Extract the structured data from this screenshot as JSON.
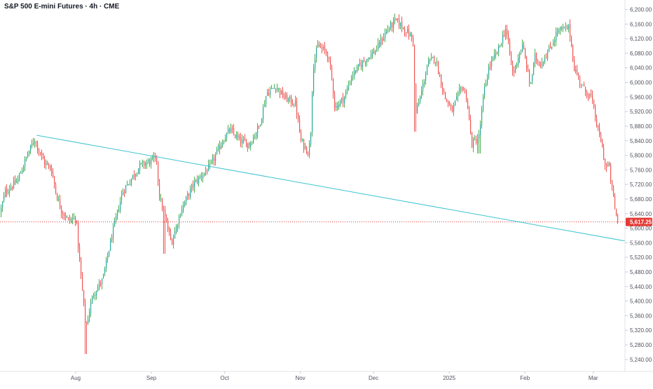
{
  "chart_title": "S&P 500 E-mini Futures · 4h · CME",
  "colors": {
    "up": "#26a69a",
    "up_wick": "#4caf50",
    "down": "#ef5350",
    "trendline": "#3fc4d1",
    "last_price_bg": "#e53935",
    "grid": "#f0f3fa",
    "axis_text": "#50535e"
  },
  "chart_data": {
    "type": "candlestick",
    "grid": false,
    "y_axis": {
      "position": "right",
      "ylim": [
        5207,
        6226
      ],
      "ticks": [
        6200,
        6160,
        6120,
        6080,
        6040,
        6000,
        5960,
        5920,
        5880,
        5840,
        5800,
        5760,
        5720,
        5680,
        5640,
        5600,
        5560,
        5520,
        5480,
        5440,
        5400,
        5360,
        5320,
        5280,
        5240
      ],
      "tick_labels": [
        "6,200.00",
        "6,160.00",
        "6,120.00",
        "6,080.00",
        "6,040.00",
        "6,000.00",
        "5,960.00",
        "5,920.00",
        "5,880.00",
        "5,840.00",
        "5,800.00",
        "5,760.00",
        "5,720.00",
        "5,680.00",
        "5,640.00",
        "5,600.00",
        "5,560.00",
        "5,520.00",
        "5,480.00",
        "5,440.00",
        "5,400.00",
        "5,360.00",
        "5,320.00",
        "5,280.00",
        "5,240.00"
      ]
    },
    "x_axis": {
      "start": "2024-07-01",
      "end": "2025-03-14",
      "ticks": [
        {
          "date": "2024-08-01",
          "label": "Aug"
        },
        {
          "date": "2024-09-01",
          "label": "Sep"
        },
        {
          "date": "2024-10-01",
          "label": "Oct"
        },
        {
          "date": "2024-11-01",
          "label": "Nov"
        },
        {
          "date": "2024-12-01",
          "label": "Dec"
        },
        {
          "date": "2025-01-01",
          "label": "2025"
        },
        {
          "date": "2025-02-01",
          "label": "Feb"
        },
        {
          "date": "2025-03-01",
          "label": "Mar"
        }
      ]
    },
    "price_path": [
      [
        "2024-07-01",
        5645
      ],
      [
        "2024-07-03",
        5700
      ],
      [
        "2024-07-08",
        5730
      ],
      [
        "2024-07-12",
        5800
      ],
      [
        "2024-07-15",
        5845
      ],
      [
        "2024-07-17",
        5810
      ],
      [
        "2024-07-19",
        5780
      ],
      [
        "2024-07-22",
        5760
      ],
      [
        "2024-07-24",
        5690
      ],
      [
        "2024-07-26",
        5650
      ],
      [
        "2024-07-29",
        5620
      ],
      [
        "2024-08-01",
        5630
      ],
      [
        "2024-08-02",
        5540
      ],
      [
        "2024-08-05",
        5325
      ],
      [
        "2024-08-06",
        5360
      ],
      [
        "2024-08-08",
        5420
      ],
      [
        "2024-08-12",
        5460
      ],
      [
        "2024-08-15",
        5560
      ],
      [
        "2024-08-20",
        5700
      ],
      [
        "2024-08-22",
        5720
      ],
      [
        "2024-08-27",
        5770
      ],
      [
        "2024-08-30",
        5780
      ],
      [
        "2024-09-03",
        5790
      ],
      [
        "2024-09-04",
        5690
      ],
      [
        "2024-09-06",
        5640
      ],
      [
        "2024-09-09",
        5560
      ],
      [
        "2024-09-10",
        5580
      ],
      [
        "2024-09-13",
        5650
      ],
      [
        "2024-09-18",
        5720
      ],
      [
        "2024-09-25",
        5770
      ],
      [
        "2024-09-30",
        5840
      ],
      [
        "2024-10-03",
        5870
      ],
      [
        "2024-10-07",
        5840
      ],
      [
        "2024-10-11",
        5830
      ],
      [
        "2024-10-15",
        5880
      ],
      [
        "2024-10-18",
        5970
      ],
      [
        "2024-10-22",
        5990
      ],
      [
        "2024-10-25",
        5960
      ],
      [
        "2024-10-30",
        5940
      ],
      [
        "2024-11-01",
        5840
      ],
      [
        "2024-11-04",
        5810
      ],
      [
        "2024-11-05",
        5840
      ],
      [
        "2024-11-06",
        6040
      ],
      [
        "2024-11-08",
        6100
      ],
      [
        "2024-11-12",
        6080
      ],
      [
        "2024-11-14",
        6000
      ],
      [
        "2024-11-15",
        5930
      ],
      [
        "2024-11-19",
        5960
      ],
      [
        "2024-11-22",
        6020
      ],
      [
        "2024-11-27",
        6060
      ],
      [
        "2024-12-02",
        6090
      ],
      [
        "2024-12-06",
        6140
      ],
      [
        "2024-12-10",
        6170
      ],
      [
        "2024-12-13",
        6150
      ],
      [
        "2024-12-17",
        6120
      ],
      [
        "2024-12-18",
        5910
      ],
      [
        "2024-12-20",
        5960
      ],
      [
        "2024-12-23",
        6050
      ],
      [
        "2024-12-26",
        6070
      ],
      [
        "2024-12-30",
        5960
      ],
      [
        "2025-01-02",
        5920
      ],
      [
        "2025-01-06",
        5990
      ],
      [
        "2025-01-08",
        5960
      ],
      [
        "2025-01-10",
        5830
      ],
      [
        "2025-01-13",
        5850
      ],
      [
        "2025-01-15",
        5970
      ],
      [
        "2025-01-17",
        6040
      ],
      [
        "2025-01-21",
        6090
      ],
      [
        "2025-01-24",
        6150
      ],
      [
        "2025-01-27",
        6020
      ],
      [
        "2025-01-29",
        6070
      ],
      [
        "2025-01-31",
        6100
      ],
      [
        "2025-02-03",
        5990
      ],
      [
        "2025-02-05",
        6070
      ],
      [
        "2025-02-07",
        6050
      ],
      [
        "2025-02-11",
        6090
      ],
      [
        "2025-02-14",
        6140
      ],
      [
        "2025-02-19",
        6150
      ],
      [
        "2025-02-21",
        6040
      ],
      [
        "2025-02-25",
        5980
      ],
      [
        "2025-02-28",
        5960
      ],
      [
        "2025-03-03",
        5860
      ],
      [
        "2025-03-04",
        5840
      ],
      [
        "2025-03-06",
        5760
      ],
      [
        "2025-03-07",
        5780
      ],
      [
        "2025-03-10",
        5640
      ],
      [
        "2025-03-11",
        5617.25
      ]
    ],
    "lows": [
      {
        "date": "2024-08-05",
        "low": 5255
      },
      {
        "date": "2024-09-06",
        "low": 5530
      },
      {
        "date": "2024-12-18",
        "low": 5865
      },
      {
        "date": "2025-01-13",
        "low": 5805
      }
    ],
    "trendline": {
      "from": [
        "2024-07-16",
        5855
      ],
      "to": [
        "2025-03-14",
        5565
      ]
    },
    "last_price": {
      "value": 5617.25,
      "label": "5,617.25"
    }
  }
}
